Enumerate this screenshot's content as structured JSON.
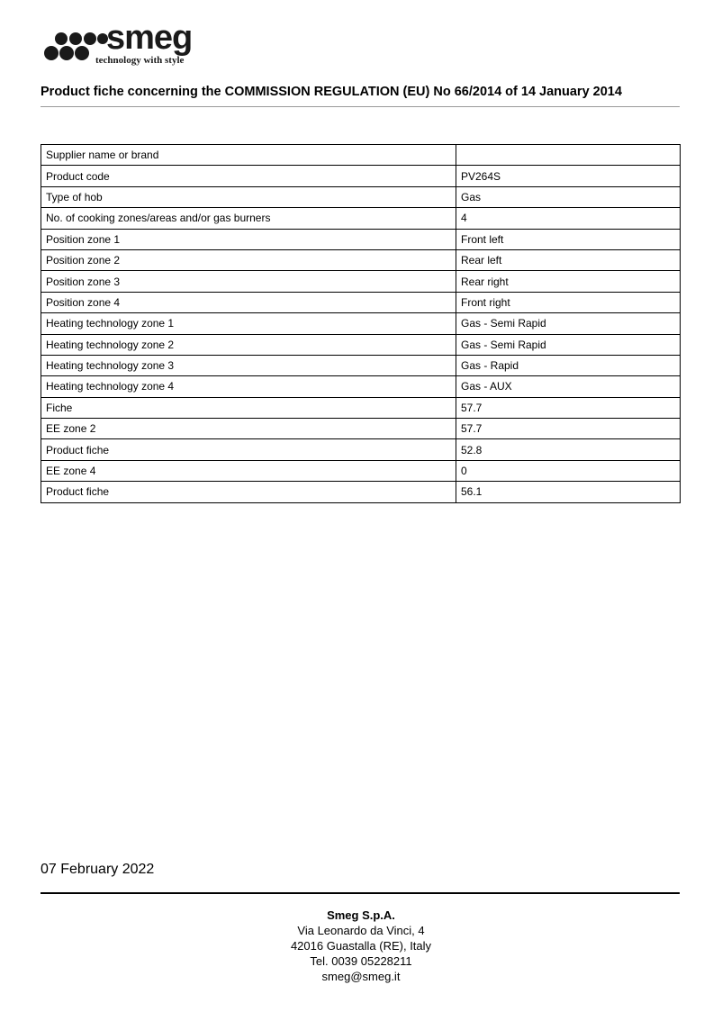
{
  "logo": {
    "brand": "smeg",
    "tagline": "technology with style"
  },
  "title": "Product fiche concerning the COMMISSION REGULATION (EU) No 66/2014 of 14 January 2014",
  "table": [
    {
      "label": "Supplier name or brand",
      "value": ""
    },
    {
      "label": "Product code",
      "value": "PV264S"
    },
    {
      "label": "Type of hob",
      "value": "Gas"
    },
    {
      "label": "No. of cooking zones/areas and/or gas burners",
      "value": "4"
    },
    {
      "label": "Position zone 1",
      "value": "Front left"
    },
    {
      "label": "Position zone 2",
      "value": "Rear left"
    },
    {
      "label": "Position zone 3",
      "value": "Rear right"
    },
    {
      "label": "Position zone 4",
      "value": "Front right"
    },
    {
      "label": "Heating technology zone 1",
      "value": "Gas - Semi Rapid"
    },
    {
      "label": "Heating technology zone 2",
      "value": "Gas - Semi Rapid"
    },
    {
      "label": "Heating technology zone 3",
      "value": "Gas - Rapid"
    },
    {
      "label": "Heating technology zone 4",
      "value": "Gas - AUX"
    },
    {
      "label": "Fiche",
      "value": "57.7"
    },
    {
      "label": "EE zone 2",
      "value": "57.7"
    },
    {
      "label": "Product fiche",
      "value": "52.8"
    },
    {
      "label": "EE zone 4",
      "value": "0"
    },
    {
      "label": "Product fiche",
      "value": "56.1"
    }
  ],
  "date": "07 February 2022",
  "footer": {
    "company": "Smeg S.p.A.",
    "address1": "Via Leonardo da Vinci, 4",
    "address2": "42016 Guastalla (RE), Italy",
    "phone": "Tel. 0039 05228211",
    "email": "smeg@smeg.it"
  }
}
